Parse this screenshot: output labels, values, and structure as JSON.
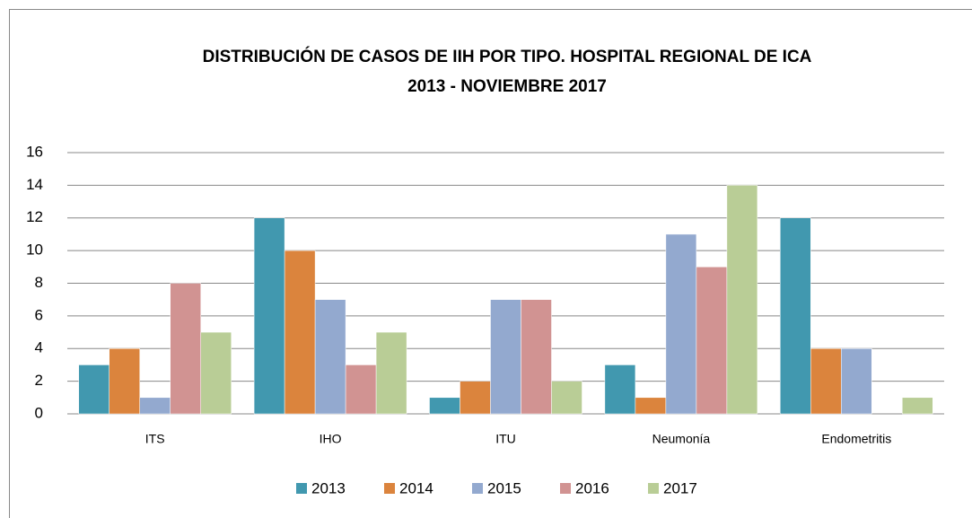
{
  "chart_data": {
    "type": "bar",
    "title": "DISTRIBUCIÓN DE CASOS DE IIH POR TIPO. HOSPITAL REGIONAL DE ICA",
    "subtitle": "2013 -  NOVIEMBRE 2017",
    "categories": [
      "ITS",
      "IHO",
      "ITU",
      "Neumonía",
      "Endometritis"
    ],
    "series": [
      {
        "name": "2013",
        "color": "#4198af",
        "values": [
          3,
          12,
          1,
          3,
          12
        ]
      },
      {
        "name": "2014",
        "color": "#db843d",
        "values": [
          4,
          10,
          2,
          1,
          4
        ]
      },
      {
        "name": "2015",
        "color": "#93a9cf",
        "values": [
          1,
          7,
          7,
          11,
          4
        ]
      },
      {
        "name": "2016",
        "color": "#d19392",
        "values": [
          8,
          3,
          7,
          9,
          0
        ]
      },
      {
        "name": "2017",
        "color": "#b9cd96",
        "values": [
          5,
          5,
          2,
          14,
          1
        ]
      }
    ],
    "ylim": [
      0,
      16
    ],
    "yticks": [
      0,
      2,
      4,
      6,
      8,
      10,
      12,
      14,
      16
    ],
    "grid": true,
    "legend": "bottom"
  }
}
